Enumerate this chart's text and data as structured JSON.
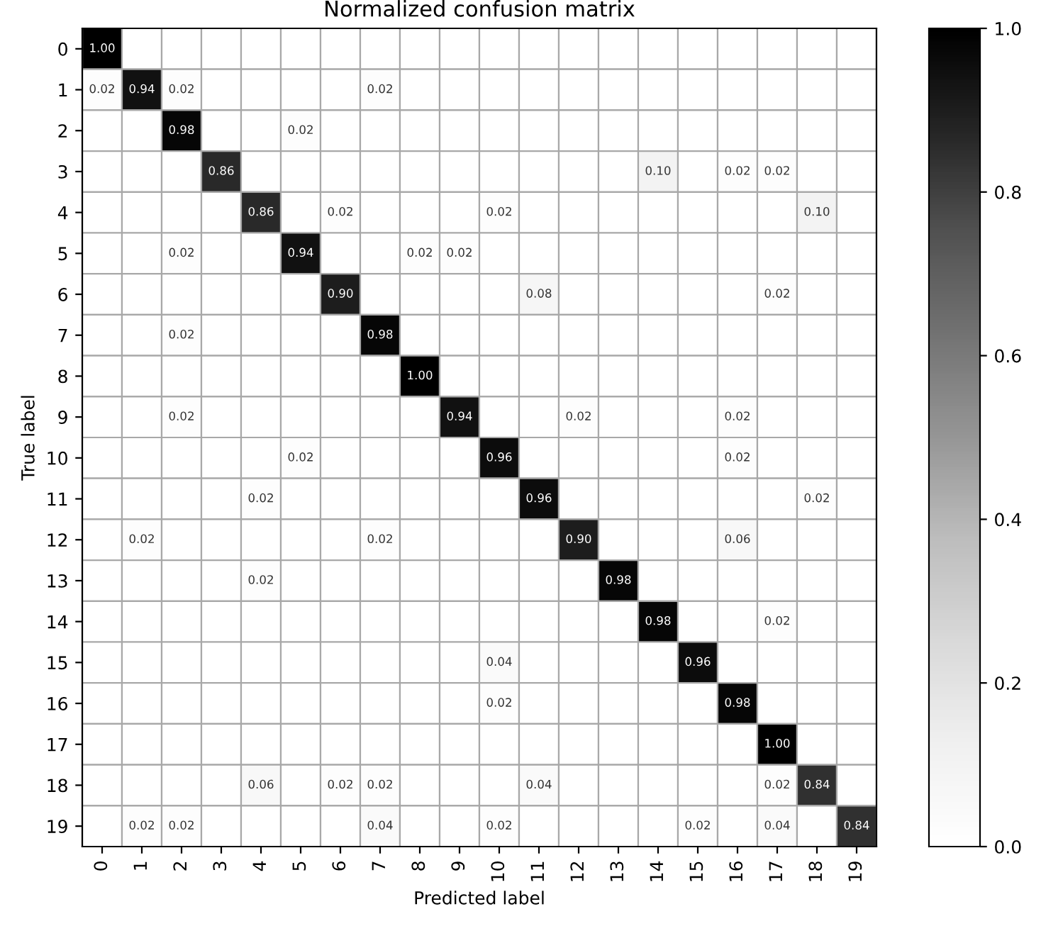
{
  "chart_data": {
    "type": "heatmap",
    "title": "Normalized confusion matrix",
    "xlabel": "Predicted label",
    "ylabel": "True label",
    "categories": [
      "0",
      "1",
      "2",
      "3",
      "4",
      "5",
      "6",
      "7",
      "8",
      "9",
      "10",
      "11",
      "12",
      "13",
      "14",
      "15",
      "16",
      "17",
      "18",
      "19"
    ],
    "y_categories": [
      "0",
      "1",
      "2",
      "3",
      "4",
      "5",
      "6",
      "7",
      "8",
      "9",
      "10",
      "11",
      "12",
      "13",
      "14",
      "15",
      "16",
      "17",
      "18",
      "19"
    ],
    "cells": [
      [
        1.0,
        0,
        0,
        0,
        0,
        0,
        0,
        0,
        0,
        0,
        0,
        0,
        0,
        0,
        0,
        0,
        0,
        0,
        0,
        0
      ],
      [
        0.02,
        0.94,
        0.02,
        0,
        0,
        0,
        0,
        0.02,
        0,
        0,
        0,
        0,
        0,
        0,
        0,
        0,
        0,
        0,
        0,
        0
      ],
      [
        0,
        0,
        0.98,
        0,
        0,
        0.02,
        0,
        0,
        0,
        0,
        0,
        0,
        0,
        0,
        0,
        0,
        0,
        0,
        0,
        0
      ],
      [
        0,
        0,
        0,
        0.86,
        0,
        0,
        0,
        0,
        0,
        0,
        0,
        0,
        0,
        0,
        0.1,
        0,
        0.02,
        0.02,
        0,
        0
      ],
      [
        0,
        0,
        0,
        0,
        0.86,
        0,
        0.02,
        0,
        0,
        0,
        0.02,
        0,
        0,
        0,
        0,
        0,
        0,
        0,
        0.1,
        0
      ],
      [
        0,
        0,
        0.02,
        0,
        0,
        0.94,
        0,
        0,
        0.02,
        0.02,
        0,
        0,
        0,
        0,
        0,
        0,
        0,
        0,
        0,
        0
      ],
      [
        0,
        0,
        0,
        0,
        0,
        0,
        0.9,
        0,
        0,
        0,
        0,
        0.08,
        0,
        0,
        0,
        0,
        0,
        0.02,
        0,
        0
      ],
      [
        0,
        0,
        0.02,
        0,
        0,
        0,
        0,
        0.98,
        0,
        0,
        0,
        0,
        0,
        0,
        0,
        0,
        0,
        0,
        0,
        0
      ],
      [
        0,
        0,
        0,
        0,
        0,
        0,
        0,
        0,
        1.0,
        0,
        0,
        0,
        0,
        0,
        0,
        0,
        0,
        0,
        0,
        0
      ],
      [
        0,
        0,
        0.02,
        0,
        0,
        0,
        0,
        0,
        0,
        0.94,
        0,
        0,
        0.02,
        0,
        0,
        0,
        0.02,
        0,
        0,
        0
      ],
      [
        0,
        0,
        0,
        0,
        0,
        0.02,
        0,
        0,
        0,
        0,
        0.96,
        0,
        0,
        0,
        0,
        0,
        0.02,
        0,
        0,
        0
      ],
      [
        0,
        0,
        0,
        0,
        0.02,
        0,
        0,
        0,
        0,
        0,
        0,
        0.96,
        0,
        0,
        0,
        0,
        0,
        0,
        0.02,
        0
      ],
      [
        0,
        0.02,
        0,
        0,
        0,
        0,
        0,
        0.02,
        0,
        0,
        0,
        0,
        0.9,
        0,
        0,
        0,
        0.06,
        0,
        0,
        0
      ],
      [
        0,
        0,
        0,
        0,
        0.02,
        0,
        0,
        0,
        0,
        0,
        0,
        0,
        0,
        0.98,
        0,
        0,
        0,
        0,
        0,
        0
      ],
      [
        0,
        0,
        0,
        0,
        0,
        0,
        0,
        0,
        0,
        0,
        0,
        0,
        0,
        0,
        0.98,
        0,
        0,
        0.02,
        0,
        0
      ],
      [
        0,
        0,
        0,
        0,
        0,
        0,
        0,
        0,
        0,
        0,
        0.04,
        0,
        0,
        0,
        0,
        0.96,
        0,
        0,
        0,
        0
      ],
      [
        0,
        0,
        0,
        0,
        0,
        0,
        0,
        0,
        0,
        0,
        0.02,
        0,
        0,
        0,
        0,
        0,
        0.98,
        0,
        0,
        0
      ],
      [
        0,
        0,
        0,
        0,
        0,
        0,
        0,
        0,
        0,
        0,
        0,
        0,
        0,
        0,
        0,
        0,
        0,
        1.0,
        0,
        0
      ],
      [
        0,
        0,
        0,
        0,
        0.06,
        0,
        0.02,
        0.02,
        0,
        0,
        0,
        0.04,
        0,
        0,
        0,
        0,
        0,
        0.02,
        0.84,
        0
      ],
      [
        0,
        0.02,
        0.02,
        0,
        0,
        0,
        0,
        0.04,
        0,
        0,
        0.02,
        0,
        0,
        0,
        0,
        0.02,
        0,
        0.04,
        0,
        0.84
      ]
    ],
    "cell_labels": [
      [
        "1.00",
        null,
        null,
        null,
        null,
        null,
        null,
        null,
        null,
        null,
        null,
        null,
        null,
        null,
        null,
        null,
        null,
        null,
        null,
        null
      ],
      [
        "0.02",
        "0.94",
        "0.02",
        null,
        null,
        null,
        null,
        "0.02",
        null,
        null,
        null,
        null,
        null,
        null,
        null,
        null,
        null,
        null,
        null,
        null
      ],
      [
        null,
        null,
        "0.98",
        null,
        null,
        "0.02",
        null,
        null,
        null,
        null,
        null,
        null,
        null,
        null,
        null,
        null,
        null,
        null,
        null,
        null
      ],
      [
        null,
        null,
        null,
        "0.86",
        null,
        null,
        null,
        null,
        null,
        null,
        null,
        null,
        null,
        null,
        "0.10",
        null,
        "0.02",
        "0.02",
        null,
        null
      ],
      [
        null,
        null,
        null,
        null,
        "0.86",
        null,
        "0.02",
        null,
        null,
        null,
        "0.02",
        null,
        null,
        null,
        null,
        null,
        null,
        null,
        "0.10",
        null
      ],
      [
        null,
        null,
        "0.02",
        null,
        null,
        "0.94",
        null,
        null,
        "0.02",
        "0.02",
        null,
        null,
        null,
        null,
        null,
        null,
        null,
        null,
        null,
        null
      ],
      [
        null,
        null,
        null,
        null,
        null,
        null,
        "0.90",
        null,
        null,
        null,
        null,
        "0.08",
        null,
        null,
        null,
        null,
        null,
        "0.02",
        null,
        null
      ],
      [
        null,
        null,
        "0.02",
        null,
        null,
        null,
        null,
        "0.98",
        null,
        null,
        null,
        null,
        null,
        null,
        null,
        null,
        null,
        null,
        null,
        null
      ],
      [
        null,
        null,
        null,
        null,
        null,
        null,
        null,
        null,
        "1.00",
        null,
        null,
        null,
        null,
        null,
        null,
        null,
        null,
        null,
        null,
        null
      ],
      [
        null,
        null,
        "0.02",
        null,
        null,
        null,
        null,
        null,
        null,
        "0.94",
        null,
        null,
        "0.02",
        null,
        null,
        null,
        "0.02",
        null,
        null,
        null
      ],
      [
        null,
        null,
        null,
        null,
        null,
        "0.02",
        null,
        null,
        null,
        null,
        "0.96",
        null,
        null,
        null,
        null,
        null,
        "0.02",
        null,
        null,
        null
      ],
      [
        null,
        null,
        null,
        null,
        "0.02",
        null,
        null,
        null,
        null,
        null,
        null,
        "0.96",
        null,
        null,
        null,
        null,
        null,
        null,
        "0.02",
        null
      ],
      [
        null,
        "0.02",
        null,
        null,
        null,
        null,
        null,
        "0.02",
        null,
        null,
        null,
        null,
        "0.90",
        null,
        null,
        null,
        "0.06",
        null,
        null,
        null
      ],
      [
        null,
        null,
        null,
        null,
        "0.02",
        null,
        null,
        null,
        null,
        null,
        null,
        null,
        null,
        "0.98",
        null,
        null,
        null,
        null,
        null,
        null
      ],
      [
        null,
        null,
        null,
        null,
        null,
        null,
        null,
        null,
        null,
        null,
        null,
        null,
        null,
        null,
        "0.98",
        null,
        null,
        "0.02",
        null,
        null
      ],
      [
        null,
        null,
        null,
        null,
        null,
        null,
        null,
        null,
        null,
        null,
        "0.04",
        null,
        null,
        null,
        null,
        "0.96",
        null,
        null,
        null,
        null
      ],
      [
        null,
        null,
        null,
        null,
        null,
        null,
        null,
        null,
        null,
        null,
        "0.02",
        null,
        null,
        null,
        null,
        null,
        "0.98",
        null,
        null,
        null
      ],
      [
        null,
        null,
        null,
        null,
        null,
        null,
        null,
        null,
        null,
        null,
        null,
        null,
        null,
        null,
        null,
        null,
        null,
        "1.00",
        null,
        null
      ],
      [
        null,
        null,
        null,
        null,
        "0.06",
        null,
        "0.02",
        "0.02",
        null,
        null,
        null,
        "0.04",
        null,
        null,
        null,
        null,
        null,
        "0.02",
        "0.84",
        null
      ],
      [
        null,
        "0.02",
        "0.02",
        null,
        null,
        null,
        null,
        "0.04",
        null,
        null,
        "0.02",
        null,
        null,
        null,
        null,
        "0.02",
        null,
        "0.04",
        null,
        "0.84"
      ]
    ],
    "clim": [
      0,
      1
    ],
    "cticks": [
      {
        "value": 0,
        "label": "0.0"
      },
      {
        "value": 0.2,
        "label": "0.2"
      },
      {
        "value": 0.4,
        "label": "0.4"
      },
      {
        "value": 0.6,
        "label": "0.6"
      },
      {
        "value": 0.8,
        "label": "0.8"
      },
      {
        "value": 1.0,
        "label": "1.0"
      }
    ]
  }
}
